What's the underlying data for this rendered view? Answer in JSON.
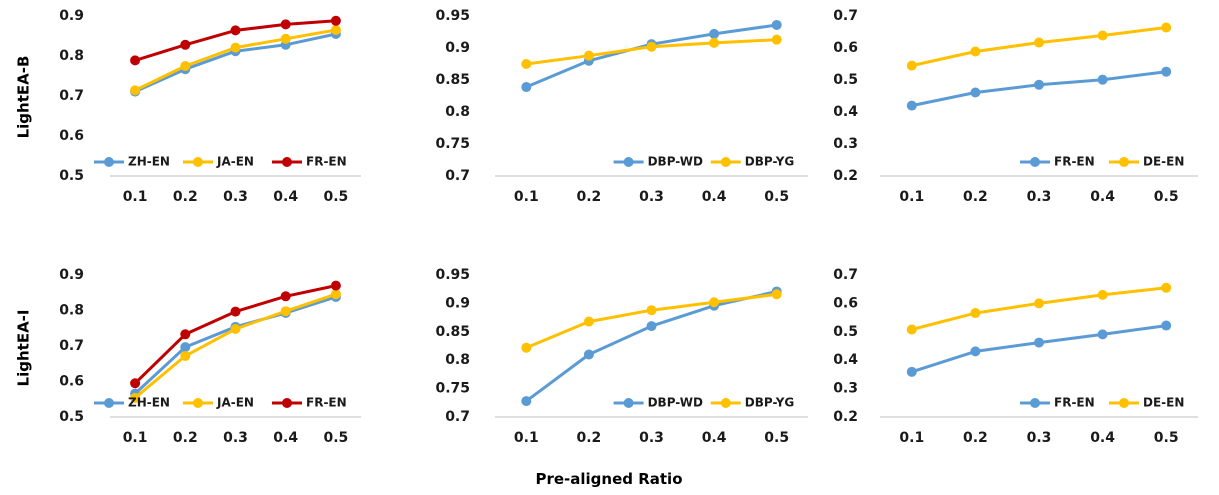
{
  "figure": {
    "row_labels": [
      "LightEA-B",
      "LightEA-I"
    ],
    "xlabel": "Pre-aligned Ratio"
  },
  "chart_data": [
    {
      "type": "line",
      "row_label": "LightEA-B",
      "x": [
        "0.1",
        "0.2",
        "0.3",
        "0.4",
        "0.5"
      ],
      "ylim": [
        0.5,
        0.9
      ],
      "yticks": [
        "0.5",
        "0.6",
        "0.7",
        "0.8",
        "0.9"
      ],
      "legend_placement": "bottom-right",
      "grid": false,
      "series": [
        {
          "name": "ZH-EN",
          "color": "#5B9BD5",
          "values": [
            0.711,
            0.767,
            0.812,
            0.828,
            0.855
          ]
        },
        {
          "name": "JA-EN",
          "color": "#FFC000",
          "values": [
            0.714,
            0.775,
            0.821,
            0.843,
            0.865
          ]
        },
        {
          "name": "FR-EN",
          "color": "#C00000",
          "values": [
            0.789,
            0.828,
            0.864,
            0.879,
            0.888
          ]
        }
      ]
    },
    {
      "type": "line",
      "row_label": "LightEA-B",
      "x": [
        "0.1",
        "0.2",
        "0.3",
        "0.4",
        "0.5"
      ],
      "ylim": [
        0.7,
        0.95
      ],
      "yticks": [
        "0.7",
        "0.75",
        "0.8",
        "0.85",
        "0.9",
        "0.95"
      ],
      "legend_placement": "bottom-right",
      "grid": false,
      "series": [
        {
          "name": "DBP-WD",
          "color": "#5B9BD5",
          "values": [
            0.839,
            0.88,
            0.906,
            0.922,
            0.936
          ]
        },
        {
          "name": "DBP-YG",
          "color": "#FFC000",
          "values": [
            0.875,
            0.888,
            0.902,
            0.908,
            0.913
          ]
        }
      ]
    },
    {
      "type": "line",
      "row_label": "LightEA-B",
      "x": [
        "0.1",
        "0.2",
        "0.3",
        "0.4",
        "0.5"
      ],
      "ylim": [
        0.2,
        0.7
      ],
      "yticks": [
        "0.2",
        "0.3",
        "0.4",
        "0.5",
        "0.6",
        "0.7"
      ],
      "legend_placement": "bottom-right",
      "grid": false,
      "series": [
        {
          "name": "FR-EN",
          "color": "#5B9BD5",
          "values": [
            0.42,
            0.461,
            0.485,
            0.501,
            0.526
          ]
        },
        {
          "name": "DE-EN",
          "color": "#FFC000",
          "values": [
            0.545,
            0.589,
            0.617,
            0.639,
            0.664
          ]
        }
      ]
    },
    {
      "type": "line",
      "row_label": "LightEA-I",
      "x": [
        "0.1",
        "0.2",
        "0.3",
        "0.4",
        "0.5"
      ],
      "ylim": [
        0.5,
        0.9
      ],
      "yticks": [
        "0.5",
        "0.6",
        "0.7",
        "0.8",
        "0.9"
      ],
      "legend_placement": "bottom-right",
      "grid": false,
      "series": [
        {
          "name": "ZH-EN",
          "color": "#5B9BD5",
          "values": [
            0.566,
            0.697,
            0.754,
            0.793,
            0.838
          ]
        },
        {
          "name": "JA-EN",
          "color": "#FFC000",
          "values": [
            0.554,
            0.672,
            0.748,
            0.798,
            0.846
          ]
        },
        {
          "name": "FR-EN",
          "color": "#C00000",
          "values": [
            0.595,
            0.733,
            0.797,
            0.84,
            0.87
          ]
        }
      ]
    },
    {
      "type": "line",
      "row_label": "LightEA-I",
      "x": [
        "0.1",
        "0.2",
        "0.3",
        "0.4",
        "0.5"
      ],
      "ylim": [
        0.7,
        0.95
      ],
      "yticks": [
        "0.7",
        "0.75",
        "0.8",
        "0.85",
        "0.9",
        "0.95"
      ],
      "legend_placement": "bottom-right",
      "grid": false,
      "series": [
        {
          "name": "DBP-WD",
          "color": "#5B9BD5",
          "values": [
            0.728,
            0.81,
            0.86,
            0.896,
            0.921
          ]
        },
        {
          "name": "DBP-YG",
          "color": "#FFC000",
          "values": [
            0.822,
            0.868,
            0.888,
            0.902,
            0.916
          ]
        }
      ]
    },
    {
      "type": "line",
      "row_label": "LightEA-I",
      "x": [
        "0.1",
        "0.2",
        "0.3",
        "0.4",
        "0.5"
      ],
      "ylim": [
        0.2,
        0.7
      ],
      "yticks": [
        "0.2",
        "0.3",
        "0.4",
        "0.5",
        "0.6",
        "0.7"
      ],
      "legend_placement": "bottom-right",
      "grid": false,
      "series": [
        {
          "name": "FR-EN",
          "color": "#5B9BD5",
          "values": [
            0.359,
            0.431,
            0.462,
            0.491,
            0.522
          ]
        },
        {
          "name": "DE-EN",
          "color": "#FFC000",
          "values": [
            0.508,
            0.566,
            0.6,
            0.63,
            0.655
          ]
        }
      ]
    }
  ]
}
